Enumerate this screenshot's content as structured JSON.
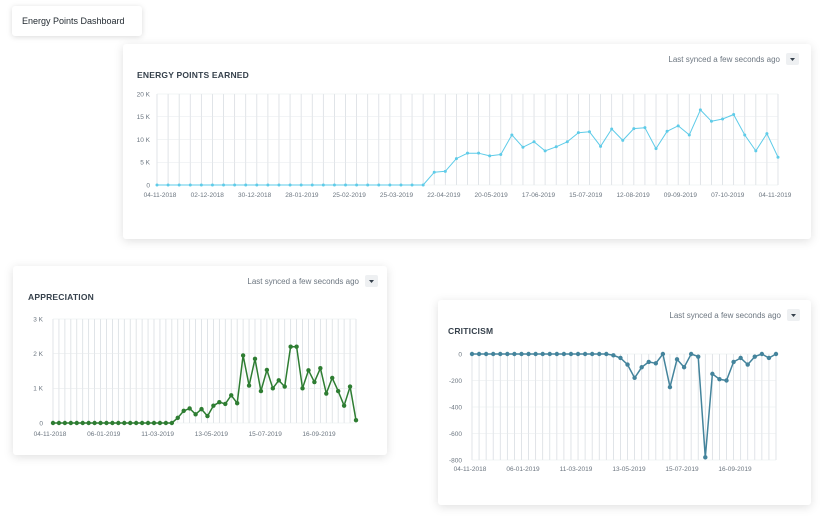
{
  "dashboard": {
    "title": "Energy Points Dashboard"
  },
  "sync_text": "Last synced a few seconds ago",
  "icons": {
    "dropdown": "chevron-down-icon"
  },
  "chart_data": [
    {
      "id": "earned",
      "type": "line",
      "title": "ENERGY POINTS EARNED",
      "color": "#5ecbe8",
      "xlabel": "",
      "ylabel": "",
      "grid": true,
      "ylim": [
        0,
        20000
      ],
      "y_ticks": [
        "0",
        "5 K",
        "10 K",
        "15 K",
        "20 K"
      ],
      "x_tick_labels": [
        "04-11-2018",
        "02-12-2018",
        "30-12-2018",
        "28-01-2019",
        "25-02-2019",
        "25-03-2019",
        "22-04-2019",
        "20-05-2019",
        "17-06-2019",
        "15-07-2019",
        "12-08-2019",
        "09-09-2019",
        "07-10-2019",
        "04-11-2019"
      ],
      "values": [
        0,
        0,
        0,
        0,
        0,
        0,
        0,
        0,
        0,
        0,
        0,
        0,
        0,
        0,
        0,
        0,
        0,
        0,
        0,
        0,
        0,
        0,
        0,
        0,
        0,
        2800,
        3000,
        5800,
        7000,
        7000,
        6400,
        6700,
        11000,
        8300,
        9500,
        7500,
        8400,
        9500,
        11500,
        11700,
        8500,
        12300,
        9800,
        12400,
        12600,
        8000,
        11800,
        13000,
        11000,
        16500,
        14000,
        14500,
        15500,
        11000,
        7500,
        11300,
        6100
      ]
    },
    {
      "id": "appreciation",
      "type": "line",
      "title": "APPRECIATION",
      "color": "#2e7d32",
      "xlabel": "",
      "ylabel": "",
      "grid": true,
      "ylim": [
        0,
        3000
      ],
      "y_ticks": [
        "0",
        "1 K",
        "2 K",
        "3 K"
      ],
      "x_tick_labels": [
        "04-11-2018",
        "06-01-2019",
        "11-03-2019",
        "13-05-2019",
        "15-07-2019",
        "16-09-2019"
      ],
      "values": [
        0,
        0,
        0,
        0,
        0,
        0,
        0,
        0,
        0,
        0,
        0,
        0,
        0,
        0,
        0,
        0,
        0,
        0,
        0,
        0,
        0,
        150,
        350,
        420,
        250,
        400,
        200,
        500,
        600,
        550,
        800,
        570,
        1950,
        1080,
        1850,
        920,
        1530,
        1000,
        1230,
        1050,
        2200,
        2200,
        1000,
        1520,
        1180,
        1580,
        850,
        1300,
        920,
        500,
        1050,
        80
      ]
    },
    {
      "id": "criticism",
      "type": "line",
      "title": "CRITICISM",
      "color": "#44849c",
      "xlabel": "",
      "ylabel": "",
      "grid": true,
      "ylim": [
        -800,
        0
      ],
      "y_ticks": [
        "-800",
        "-600",
        "-400",
        "-200",
        "0"
      ],
      "x_tick_labels": [
        "04-11-2018",
        "06-01-2019",
        "11-03-2019",
        "13-05-2019",
        "15-07-2019",
        "16-09-2019"
      ],
      "values": [
        0,
        0,
        0,
        0,
        0,
        0,
        0,
        0,
        0,
        0,
        0,
        0,
        0,
        0,
        0,
        0,
        0,
        0,
        0,
        0,
        -10,
        -30,
        -80,
        -180,
        -100,
        -60,
        -70,
        0,
        -250,
        -40,
        -100,
        0,
        -20,
        -780,
        -150,
        -190,
        -200,
        -60,
        -30,
        -80,
        -20,
        0,
        -30,
        0
      ]
    }
  ]
}
